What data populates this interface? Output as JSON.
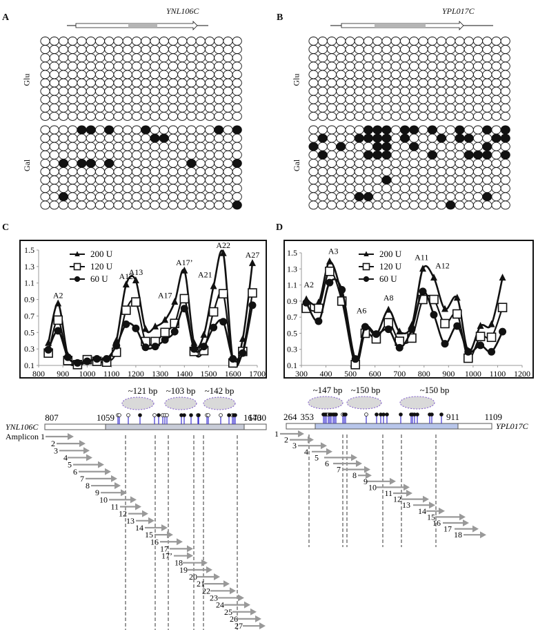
{
  "panels": {
    "A": {
      "label": "A",
      "gene": "YNL106C",
      "rows_labels": [
        "Glu",
        "Gal"
      ],
      "columns": 22,
      "glu_rows": 10,
      "gal_filled": [
        [
          5,
          6,
          8,
          12,
          20,
          22
        ],
        [
          13,
          14
        ],
        [],
        [],
        [
          3,
          5,
          6,
          8,
          17,
          22
        ],
        [],
        [],
        [],
        [
          3
        ],
        [
          22
        ]
      ]
    },
    "B": {
      "label": "B",
      "gene": "YPL017C",
      "rows_labels": [
        "Glu",
        "Gal"
      ],
      "columns": 22,
      "glu_rows": 10,
      "gal_filled": [
        [
          7,
          8,
          9,
          11,
          12,
          14,
          17,
          20,
          22
        ],
        [
          2,
          6,
          7,
          8,
          9,
          11,
          15,
          17,
          18,
          21,
          22
        ],
        [
          1,
          4,
          8,
          9,
          12,
          20
        ],
        [
          2,
          7,
          8,
          9,
          14,
          18,
          19,
          20,
          22
        ],
        [],
        [],
        [
          9
        ],
        [],
        [
          6,
          7,
          20
        ],
        [
          16
        ]
      ]
    }
  },
  "chart_data": [
    {
      "panel": "C",
      "type": "line",
      "title": "",
      "xlabel": "",
      "ylabel": "",
      "xlim": [
        800,
        1700
      ],
      "ylim": [
        0.1,
        1.5
      ],
      "xticks": [
        "800",
        "900",
        "1000",
        "1100",
        "1200",
        "1300",
        "1400",
        "1500",
        "1600",
        "1700"
      ],
      "yticks": [
        "0.1",
        "0.3",
        "0.5",
        "0.7",
        "0.9",
        "1.1",
        "1.3",
        "1.5"
      ],
      "legend": {
        "placement": "top-left",
        "entries": [
          "200 U",
          "120 U",
          "60 U"
        ]
      },
      "x": [
        840,
        880,
        920,
        960,
        1000,
        1040,
        1080,
        1120,
        1160,
        1200,
        1240,
        1280,
        1320,
        1360,
        1400,
        1440,
        1480,
        1520,
        1560,
        1600,
        1640,
        1680
      ],
      "series": [
        {
          "name": "200 U",
          "marker": "triangle",
          "values": [
            0.37,
            0.85,
            0.22,
            0.09,
            0.16,
            0.16,
            0.15,
            0.4,
            1.08,
            1.13,
            0.54,
            0.57,
            0.65,
            0.87,
            1.25,
            0.37,
            0.47,
            1.06,
            1.46,
            0.16,
            0.42,
            1.34
          ]
        },
        {
          "name": "120 U",
          "marker": "square-open",
          "values": [
            0.25,
            0.65,
            0.16,
            0.11,
            0.17,
            0.15,
            0.14,
            0.26,
            0.77,
            0.87,
            0.39,
            0.39,
            0.5,
            0.61,
            0.91,
            0.27,
            0.28,
            0.75,
            0.97,
            0.13,
            0.27,
            0.98
          ]
        },
        {
          "name": "60 U",
          "marker": "circle",
          "values": [
            0.29,
            0.52,
            0.2,
            0.13,
            0.15,
            0.18,
            0.18,
            0.34,
            0.6,
            0.55,
            0.32,
            0.33,
            0.41,
            0.51,
            0.79,
            0.3,
            0.33,
            0.56,
            0.63,
            0.18,
            0.25,
            0.83
          ]
        }
      ],
      "annotations": [
        {
          "text": "A2",
          "x": 880,
          "y": 0.85
        },
        {
          "text": "A12",
          "x": 1160,
          "y": 1.08
        },
        {
          "text": "A13",
          "x": 1200,
          "y": 1.13
        },
        {
          "text": "A17",
          "x": 1320,
          "y": 0.85
        },
        {
          "text": "A17’",
          "x": 1400,
          "y": 1.25
        },
        {
          "text": "A21",
          "x": 1485,
          "y": 1.1
        },
        {
          "text": "A22",
          "x": 1560,
          "y": 1.46
        },
        {
          "text": "A27",
          "x": 1680,
          "y": 1.34
        }
      ]
    },
    {
      "panel": "D",
      "type": "line",
      "title": "",
      "xlabel": "",
      "ylabel": "",
      "xlim": [
        300,
        1200
      ],
      "ylim": [
        0.1,
        1.5
      ],
      "xticks": [
        "300",
        "400",
        "500",
        "600",
        "700",
        "800",
        "900",
        "1000",
        "1100",
        "1200"
      ],
      "yticks": [
        "0.1",
        "0.3",
        "0.5",
        "0.7",
        "0.9",
        "1.1",
        "1.3",
        "1.5"
      ],
      "legend": {
        "placement": "top-center",
        "entries": [
          "200 U",
          "120 U",
          "60 U"
        ]
      },
      "x": [
        320,
        370,
        415,
        465,
        520,
        560,
        605,
        655,
        700,
        750,
        795,
        840,
        885,
        935,
        980,
        1030,
        1075,
        1120
      ],
      "series": [
        {
          "name": "200 U",
          "marker": "triangle",
          "values": [
            0.92,
            0.88,
            1.39,
            0.97,
            0.15,
            0.58,
            0.48,
            0.79,
            0.52,
            0.6,
            1.3,
            1.19,
            0.8,
            0.94,
            0.28,
            0.59,
            0.61,
            1.19
          ]
        },
        {
          "name": "120 U",
          "marker": "square-open",
          "values": [
            0.81,
            0.81,
            1.27,
            0.9,
            0.11,
            0.5,
            0.43,
            0.63,
            0.4,
            0.44,
            0.92,
            0.92,
            0.62,
            0.74,
            0.19,
            0.46,
            0.45,
            0.82
          ]
        },
        {
          "name": "60 U",
          "marker": "circle",
          "values": [
            0.88,
            0.65,
            1.13,
            1.04,
            0.18,
            0.58,
            0.49,
            0.55,
            0.32,
            0.55,
            1.02,
            0.73,
            0.37,
            0.59,
            0.27,
            0.35,
            0.27,
            0.52
          ]
        }
      ],
      "annotations": [
        {
          "text": "A2",
          "x": 330,
          "y": 1.0
        },
        {
          "text": "A3",
          "x": 430,
          "y": 1.42
        },
        {
          "text": "A6",
          "x": 545,
          "y": 0.68
        },
        {
          "text": "A8",
          "x": 655,
          "y": 0.84
        },
        {
          "text": "A11",
          "x": 790,
          "y": 1.34
        },
        {
          "text": "A12",
          "x": 875,
          "y": 1.24
        }
      ]
    }
  ],
  "maps": {
    "C": {
      "gene": "YNL106C",
      "coords": {
        "start": "807",
        "nuc_start": "1059",
        "nuc_end": "1640",
        "end": "1730"
      },
      "nucleosomes": [
        "~121 bp",
        "~103 bp",
        "~142 bp"
      ],
      "amplicon_prefix": "Amplicon 1",
      "amplicons": [
        "2",
        "3",
        "4",
        "5",
        "6",
        "7",
        "8",
        "9",
        "10",
        "11",
        "12",
        "13",
        "14",
        "15",
        "16",
        "17",
        "17’",
        "18",
        "19",
        "20",
        "21",
        "22",
        "23",
        "24",
        "25",
        "26",
        "27"
      ]
    },
    "D": {
      "gene": "YPL017C",
      "coords": {
        "start": "264",
        "nuc_start": "353",
        "nuc_end": "911",
        "end": "1109"
      },
      "nucleosomes": [
        "~147 bp",
        "~150 bp",
        "~150 bp"
      ],
      "amplicons": [
        "1",
        "2",
        "3",
        "4",
        "5",
        "6",
        "7",
        "8",
        "9",
        "10",
        "11",
        "12",
        "13",
        "14",
        "15",
        "16",
        "17",
        "18"
      ]
    }
  },
  "colors": {
    "cpg_line": "#3a2fd0",
    "nucleosome_fill": "#d9d9d9",
    "nucleosome_border": "#7b55c9",
    "nuc_region_C": "#c8ccd8",
    "nuc_region_D": "#b8c6ea",
    "arrow": "#999999"
  }
}
